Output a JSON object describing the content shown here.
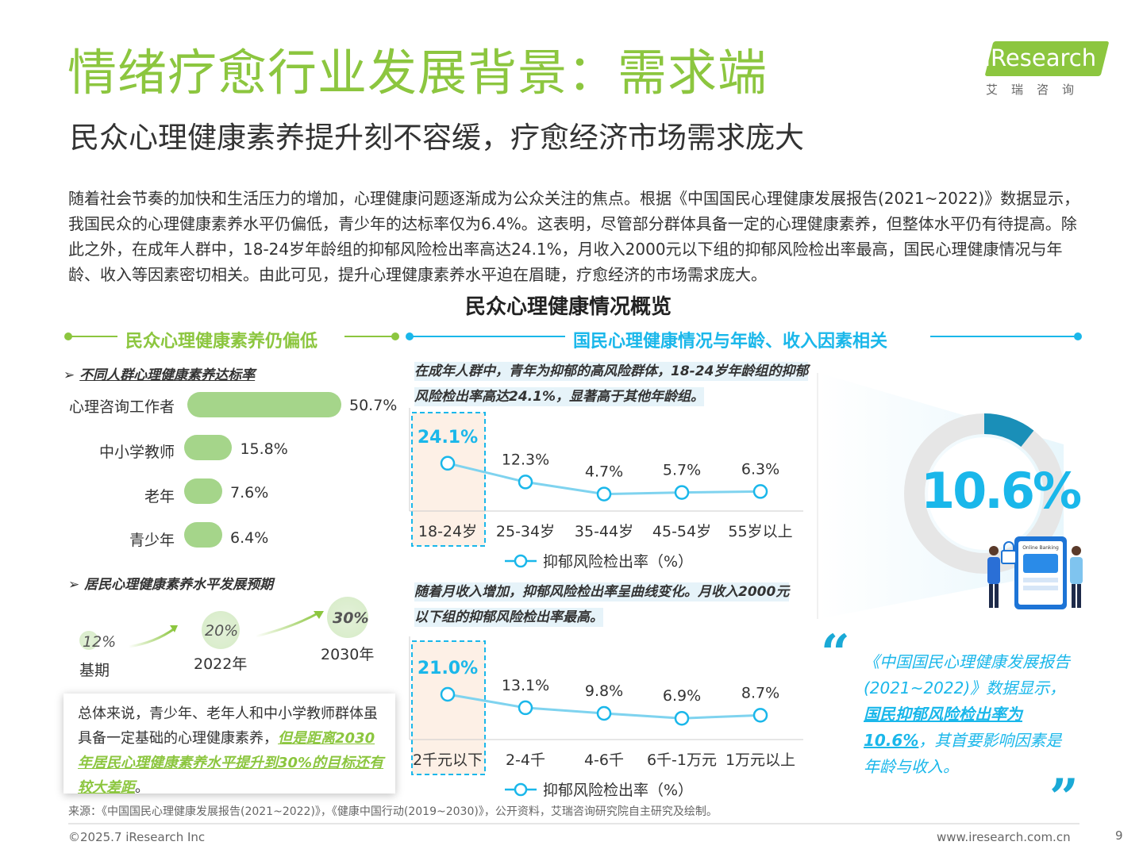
{
  "header": {
    "title": "情绪疗愈行业发展背景：需求端",
    "subtitle": "民众心理健康素养提升刻不容缓，疗愈经济市场需求庞大",
    "logo_text": "iResearch",
    "logo_sub": "艾瑞咨询"
  },
  "intro": "随着社会节奏的加快和生活压力的增加，心理健康问题逐渐成为公众关注的焦点。根据《中国国民心理健康发展报告(2021~2022)》数据显示，我国民众的心理健康素养水平仍偏低，青少年的达标率仅为6.4%。这表明，尽管部分群体具备一定的心理健康素养，但整体水平仍有待提高。除此之外，在成年人群中，18-24岁年龄组的抑郁风险检出率高达24.1%，月收入2000元以下组的抑郁风险检出率最高，国民心理健康情况与年龄、收入等因素密切相关。由此可见，提升心理健康素养水平迫在眉睫，疗愈经济的市场需求庞大。",
  "overview_title": "民众心理健康情况概览",
  "left": {
    "section_title": "民众心理健康素养仍偏低",
    "bullet1": "不同人群心理健康素养达标率",
    "bullet2": "居民心理健康素养水平发展预期",
    "summary_plain": "总体来说，青少年、老年人和中小学教师群体虽具备一定基础的心理健康素养，",
    "summary_emph": "但是距离2030年居民心理健康素养水平提升到30%的目标还有较大差距",
    "summary_end": "。"
  },
  "right": {
    "section_title": "国民心理健康情况与年龄、收入因素相关",
    "callout1": "在成年人群中，青年为抑郁的高风险群体，18-24岁年龄组的抑郁风险检出率高达24.1%，显著高于其他年龄组。",
    "callout2": "随着月收入增加，抑郁风险检出率呈曲线变化。月收入2000元以下组的抑郁风险检出率最高。",
    "big_number": "10.6%",
    "quote_plain1": "《中国国民心理健康发展报告(2021~2022)》数据显示，",
    "quote_bold": "国民抑郁风险检出率为10.6%",
    "quote_plain2": "，其首要影响因素是年龄与收入。",
    "quote_open": "“",
    "quote_close": "”",
    "illustration_caption": "Online Banking"
  },
  "chart_data": [
    {
      "type": "bar",
      "title": "不同人群心理健康素养达标率",
      "categories": [
        "心理咨询工作者",
        "中小学教师",
        "老年",
        "青少年"
      ],
      "values": [
        50.7,
        15.8,
        7.6,
        6.4
      ],
      "value_labels": [
        "50.7%",
        "15.8%",
        "7.6%",
        "6.4%"
      ],
      "unit": "%"
    },
    {
      "type": "scatter",
      "title": "居民心理健康素养水平发展预期",
      "categories": [
        "基期",
        "2022年",
        "2030年"
      ],
      "values": [
        12,
        20,
        30
      ],
      "value_labels": [
        "12%",
        "20%",
        "30%"
      ]
    },
    {
      "type": "line",
      "categories": [
        "18-24岁",
        "25-34岁",
        "35-44岁",
        "45-54岁",
        "55岁以上"
      ],
      "series": [
        {
          "name": "抑郁风险检出率（%）",
          "values": [
            24.1,
            12.3,
            4.7,
            5.7,
            6.3
          ]
        }
      ],
      "value_labels": [
        "24.1%",
        "12.3%",
        "4.7%",
        "5.7%",
        "6.3%"
      ],
      "highlight_index": 0,
      "ylim": [
        0,
        30
      ]
    },
    {
      "type": "line",
      "categories": [
        "2千元以下",
        "2-4千",
        "4-6千",
        "6千-1万元",
        "1万元以上"
      ],
      "series": [
        {
          "name": "抑郁风险检出率（%）",
          "values": [
            21.0,
            13.1,
            9.8,
            6.9,
            8.7
          ]
        }
      ],
      "value_labels": [
        "21.0%",
        "13.1%",
        "9.8%",
        "6.9%",
        "8.7%"
      ],
      "highlight_index": 0,
      "ylim": [
        0,
        28
      ]
    },
    {
      "type": "pie",
      "title": "国民抑郁风险检出率",
      "values": [
        10.6,
        89.4
      ],
      "value_labels": [
        "10.6%"
      ]
    }
  ],
  "footer": {
    "source": "来源：《中国国民心理健康发展报告(2021~2022)》，《健康中国行动(2019~2030)》，公开资料，艾瑞咨询研究院自主研究及绘制。",
    "copyright": "©2025.7 iResearch Inc",
    "website": "www.iresearch.com.cn",
    "page": "9"
  },
  "colors": {
    "green": "#8cc63f",
    "bar_green": "#a5d58a",
    "blue": "#1ab7ea",
    "line_blue": "#7fd3ef",
    "highlight": "#fdf0e6"
  }
}
